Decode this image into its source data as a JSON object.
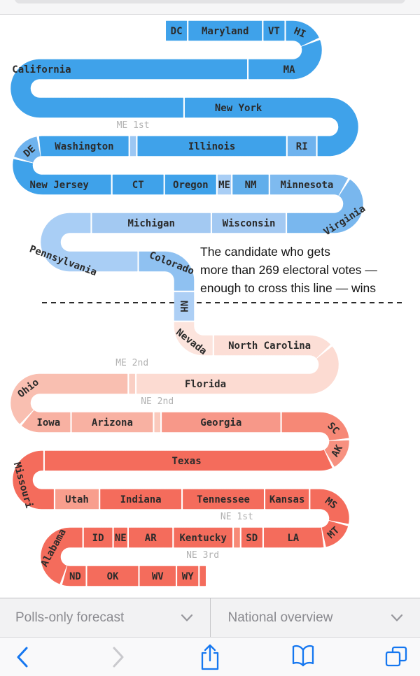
{
  "browser": {
    "dropdown_bar": {
      "left": {
        "label": "Polls-only forecast"
      },
      "right": {
        "label": "National overview"
      }
    },
    "toolbar": {
      "icons": [
        "back",
        "forward",
        "share",
        "bookmarks",
        "tabs"
      ],
      "accent_color": "#1577f0",
      "disabled_color": "#c9c9cd"
    }
  },
  "chart_data": {
    "type": "snake",
    "subject": "Electoral vote snake chart",
    "unit": "electoral votes",
    "total_ev": 538,
    "threshold": 269,
    "annotation_lines": [
      "The candidate who gets",
      "more than 269 electoral votes —",
      "enough to cross this line — wins"
    ],
    "legend_position": "none",
    "segments": [
      {
        "label": "DC",
        "ev": 3,
        "color": "#3fa2ea"
      },
      {
        "label": "Maryland",
        "ev": 10,
        "color": "#3fa2ea"
      },
      {
        "label": "VT",
        "ev": 3,
        "color": "#3fa2ea"
      },
      {
        "label": "HI",
        "ev": 4,
        "color": "#3fa2ea"
      },
      {
        "label": "MA",
        "ev": 11,
        "color": "#3fa2ea"
      },
      {
        "label": "California",
        "ev": 55,
        "color": "#3fa2ea"
      },
      {
        "label": "New York",
        "ev": 29,
        "color": "#3fa2ea",
        "lt": 0.25
      },
      {
        "label": "RI",
        "ev": 4,
        "color": "#6fb3ee"
      },
      {
        "label": "Illinois",
        "ev": 20,
        "color": "#3fa2ea"
      },
      {
        "label": "ME 1st",
        "ev": 1,
        "color": "#9cc7f3",
        "note": true
      },
      {
        "label": "Washington",
        "ev": 12,
        "color": "#3fa2ea"
      },
      {
        "label": "DE",
        "ev": 3,
        "color": "#6fb3ee"
      },
      {
        "label": "New Jersey",
        "ev": 14,
        "color": "#3fa2ea"
      },
      {
        "label": "CT",
        "ev": 7,
        "color": "#3fa2ea"
      },
      {
        "label": "Oregon",
        "ev": 7,
        "color": "#3fa2ea"
      },
      {
        "label": "ME",
        "ev": 2,
        "color": "#a9cef5"
      },
      {
        "label": "NM",
        "ev": 5,
        "color": "#61aeeb"
      },
      {
        "label": "Minnesota",
        "ev": 10,
        "color": "#7ebaef"
      },
      {
        "label": "Virginia",
        "ev": 13,
        "color": "#79b7ee",
        "lt": 0.4
      },
      {
        "label": "Wisconsin",
        "ev": 10,
        "color": "#a3c9f2"
      },
      {
        "label": "Michigan",
        "ev": 16,
        "color": "#a3c9f2"
      },
      {
        "label": "Pennsylvania",
        "ev": 20,
        "color": "#a9cef5"
      },
      {
        "label": "Colorado",
        "ev": 9,
        "color": "#8fc1f1"
      },
      {
        "label": "NH",
        "ev": 4,
        "color": "#adcff5"
      },
      {
        "label": "Nevada",
        "ev": 6,
        "color": "#fce4dd"
      },
      {
        "label": "North Carolina",
        "ev": 15,
        "color": "#fcded6"
      },
      {
        "label": "Florida",
        "ev": 29,
        "color": "#fcdbd2",
        "lt": 0.68
      },
      {
        "label": "ME 2nd",
        "ev": 1,
        "color": "#facfc4",
        "note": true
      },
      {
        "label": "Ohio",
        "ev": 18,
        "color": "#f9bfb1",
        "lt": 0.75
      },
      {
        "label": "Iowa",
        "ev": 6,
        "color": "#f8b1a2"
      },
      {
        "label": "Arizona",
        "ev": 11,
        "color": "#f8b1a2"
      },
      {
        "label": "NE 2nd",
        "ev": 1,
        "color": "#fac9bc",
        "note": true
      },
      {
        "label": "Georgia",
        "ev": 16,
        "color": "#f79889"
      },
      {
        "label": "SC",
        "ev": 9,
        "color": "#f68876",
        "lt": 0.8
      },
      {
        "label": "AK",
        "ev": 3,
        "color": "#f79180"
      },
      {
        "label": "Texas",
        "ev": 38,
        "color": "#f46c5c"
      },
      {
        "label": "Missouri",
        "ev": 10,
        "color": "#f46c5c"
      },
      {
        "label": "Utah",
        "ev": 6,
        "color": "#f89e8d"
      },
      {
        "label": "Indiana",
        "ev": 11,
        "color": "#f46c5c"
      },
      {
        "label": "Tennessee",
        "ev": 11,
        "color": "#f46c5c"
      },
      {
        "label": "Kansas",
        "ev": 6,
        "color": "#f46c5c"
      },
      {
        "label": "MS",
        "ev": 6,
        "color": "#f46c5c"
      },
      {
        "label": "MT",
        "ev": 3,
        "color": "#f46c5c"
      },
      {
        "label": "LA",
        "ev": 8,
        "color": "#f46c5c"
      },
      {
        "label": "SD",
        "ev": 3,
        "color": "#f46c5c"
      },
      {
        "label": "NE 1st",
        "ev": 1,
        "color": "#f78a77",
        "note": true
      },
      {
        "label": "Kentucky",
        "ev": 8,
        "color": "#f46c5c"
      },
      {
        "label": "AR",
        "ev": 6,
        "color": "#f46c5c"
      },
      {
        "label": "NE",
        "ev": 2,
        "color": "#f46c5c"
      },
      {
        "label": "ID",
        "ev": 4,
        "color": "#f46c5c"
      },
      {
        "label": "Alabama",
        "ev": 9,
        "color": "#f46c5c"
      },
      {
        "label": "ND",
        "ev": 3,
        "color": "#f46c5c"
      },
      {
        "label": "OK",
        "ev": 7,
        "color": "#f46c5c"
      },
      {
        "label": "WV",
        "ev": 5,
        "color": "#f46c5c"
      },
      {
        "label": "WY",
        "ev": 3,
        "color": "#f46c5c"
      },
      {
        "label": "NE 3rd",
        "ev": 1,
        "color": "#f46c5c",
        "note": true
      }
    ],
    "style": {
      "label_color": "#2b2b2b",
      "note_label_color": "#b2b2b2",
      "dash_color": "#2b2b2b"
    }
  }
}
